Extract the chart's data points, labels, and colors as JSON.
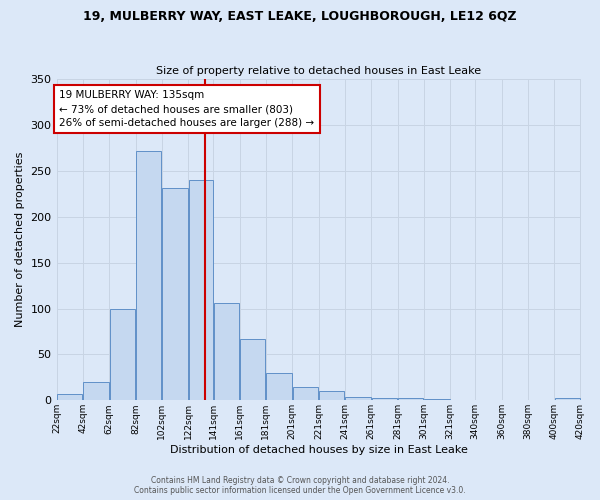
{
  "title": "19, MULBERRY WAY, EAST LEAKE, LOUGHBOROUGH, LE12 6QZ",
  "subtitle": "Size of property relative to detached houses in East Leake",
  "xlabel": "Distribution of detached houses by size in East Leake",
  "ylabel": "Number of detached properties",
  "bar_left_edges": [
    22,
    42,
    62,
    82,
    102,
    122,
    141,
    161,
    181,
    201,
    221,
    241,
    261,
    281,
    301,
    321,
    340,
    360,
    380,
    400
  ],
  "bar_widths": [
    20,
    20,
    20,
    20,
    20,
    19,
    20,
    20,
    20,
    20,
    20,
    20,
    20,
    20,
    20,
    19,
    20,
    20,
    20,
    20
  ],
  "bar_heights": [
    7,
    20,
    100,
    272,
    231,
    240,
    106,
    67,
    30,
    15,
    10,
    4,
    3,
    3,
    1,
    0,
    0,
    0,
    0,
    2
  ],
  "bar_facecolor": "#c5d8f0",
  "bar_edgecolor": "#6090c8",
  "vline_x": 135,
  "vline_color": "#cc0000",
  "annotation_text": "19 MULBERRY WAY: 135sqm\n← 73% of detached houses are smaller (803)\n26% of semi-detached houses are larger (288) →",
  "annotation_box_edgecolor": "#cc0000",
  "annotation_box_facecolor": "#ffffff",
  "tick_labels": [
    "22sqm",
    "42sqm",
    "62sqm",
    "82sqm",
    "102sqm",
    "122sqm",
    "141sqm",
    "161sqm",
    "181sqm",
    "201sqm",
    "221sqm",
    "241sqm",
    "261sqm",
    "281sqm",
    "301sqm",
    "321sqm",
    "340sqm",
    "360sqm",
    "380sqm",
    "400sqm",
    "420sqm"
  ],
  "ylim": [
    0,
    350
  ],
  "yticks": [
    0,
    50,
    100,
    150,
    200,
    250,
    300,
    350
  ],
  "grid_color": "#c8d4e4",
  "background_color": "#dce8f8",
  "plot_bg_color": "#dce8f8",
  "footer_line1": "Contains HM Land Registry data © Crown copyright and database right 2024.",
  "footer_line2": "Contains public sector information licensed under the Open Government Licence v3.0."
}
